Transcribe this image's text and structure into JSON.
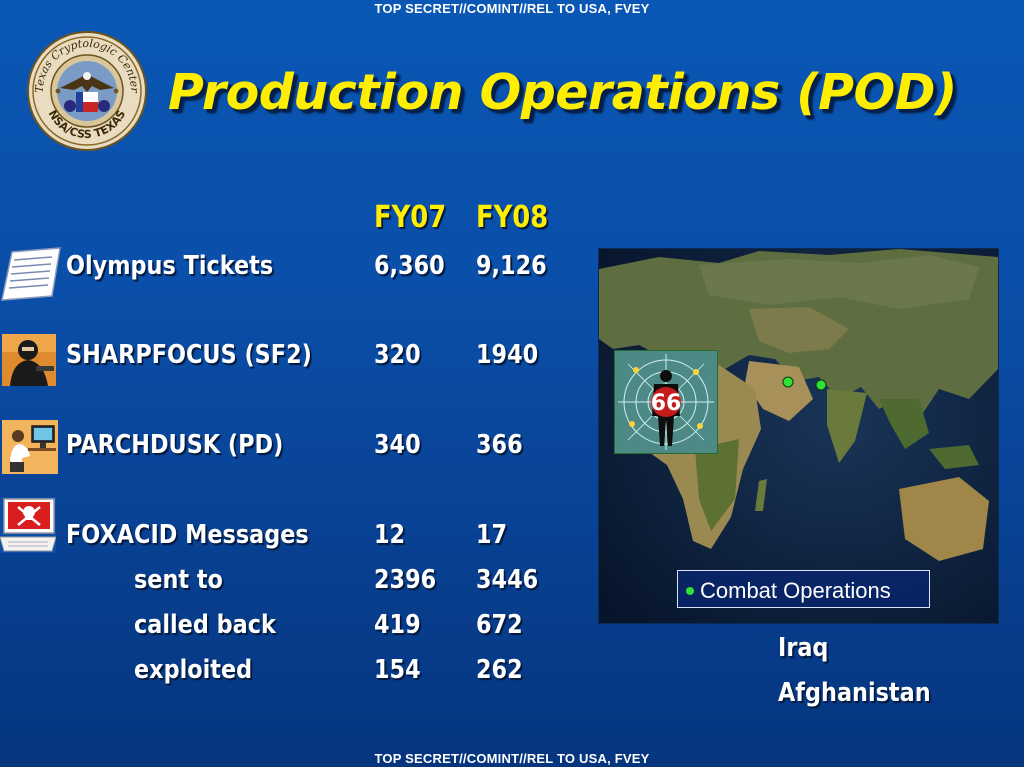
{
  "classification": {
    "top": "TOP SECRET//COMINT//REL TO USA, FVEY",
    "bottom": "TOP SECRET//COMINT//REL TO USA, FVEY"
  },
  "seal": {
    "text_top": "Texas Cryptologic Center",
    "text_bottom": "NSA/CSS TEXAS"
  },
  "title": "Production Operations (POD)",
  "columns": {
    "fy07": "FY07",
    "fy08": "FY08"
  },
  "rows": [
    {
      "label": "Olympus Tickets",
      "fy07": "6,360",
      "fy08": "9,126",
      "icon": "document-icon"
    },
    {
      "label": "SHARPFOCUS (SF2)",
      "fy07": "320",
      "fy08": "1940",
      "icon": "masked-person-icon"
    },
    {
      "label": "PARCHDUSK (PD)",
      "fy07": "340",
      "fy08": "366",
      "icon": "computer-user-icon"
    },
    {
      "label": "FOXACID Messages",
      "fy07": "12",
      "fy08": "17",
      "icon": "skull-laptop-icon"
    }
  ],
  "subrows": [
    {
      "label": "sent to",
      "fy07": "2396",
      "fy08": "3446"
    },
    {
      "label": "called back",
      "fy07": "419",
      "fy08": "672"
    },
    {
      "label": "exploited",
      "fy07": "154",
      "fy08": "262"
    }
  ],
  "map": {
    "badge": "66",
    "legend": "Combat Operations",
    "marker_color": "#2ee23a"
  },
  "locations": [
    "Iraq",
    "Afghanistan"
  ],
  "colors": {
    "title": "#ffee00",
    "background": "#0a4ea8"
  }
}
